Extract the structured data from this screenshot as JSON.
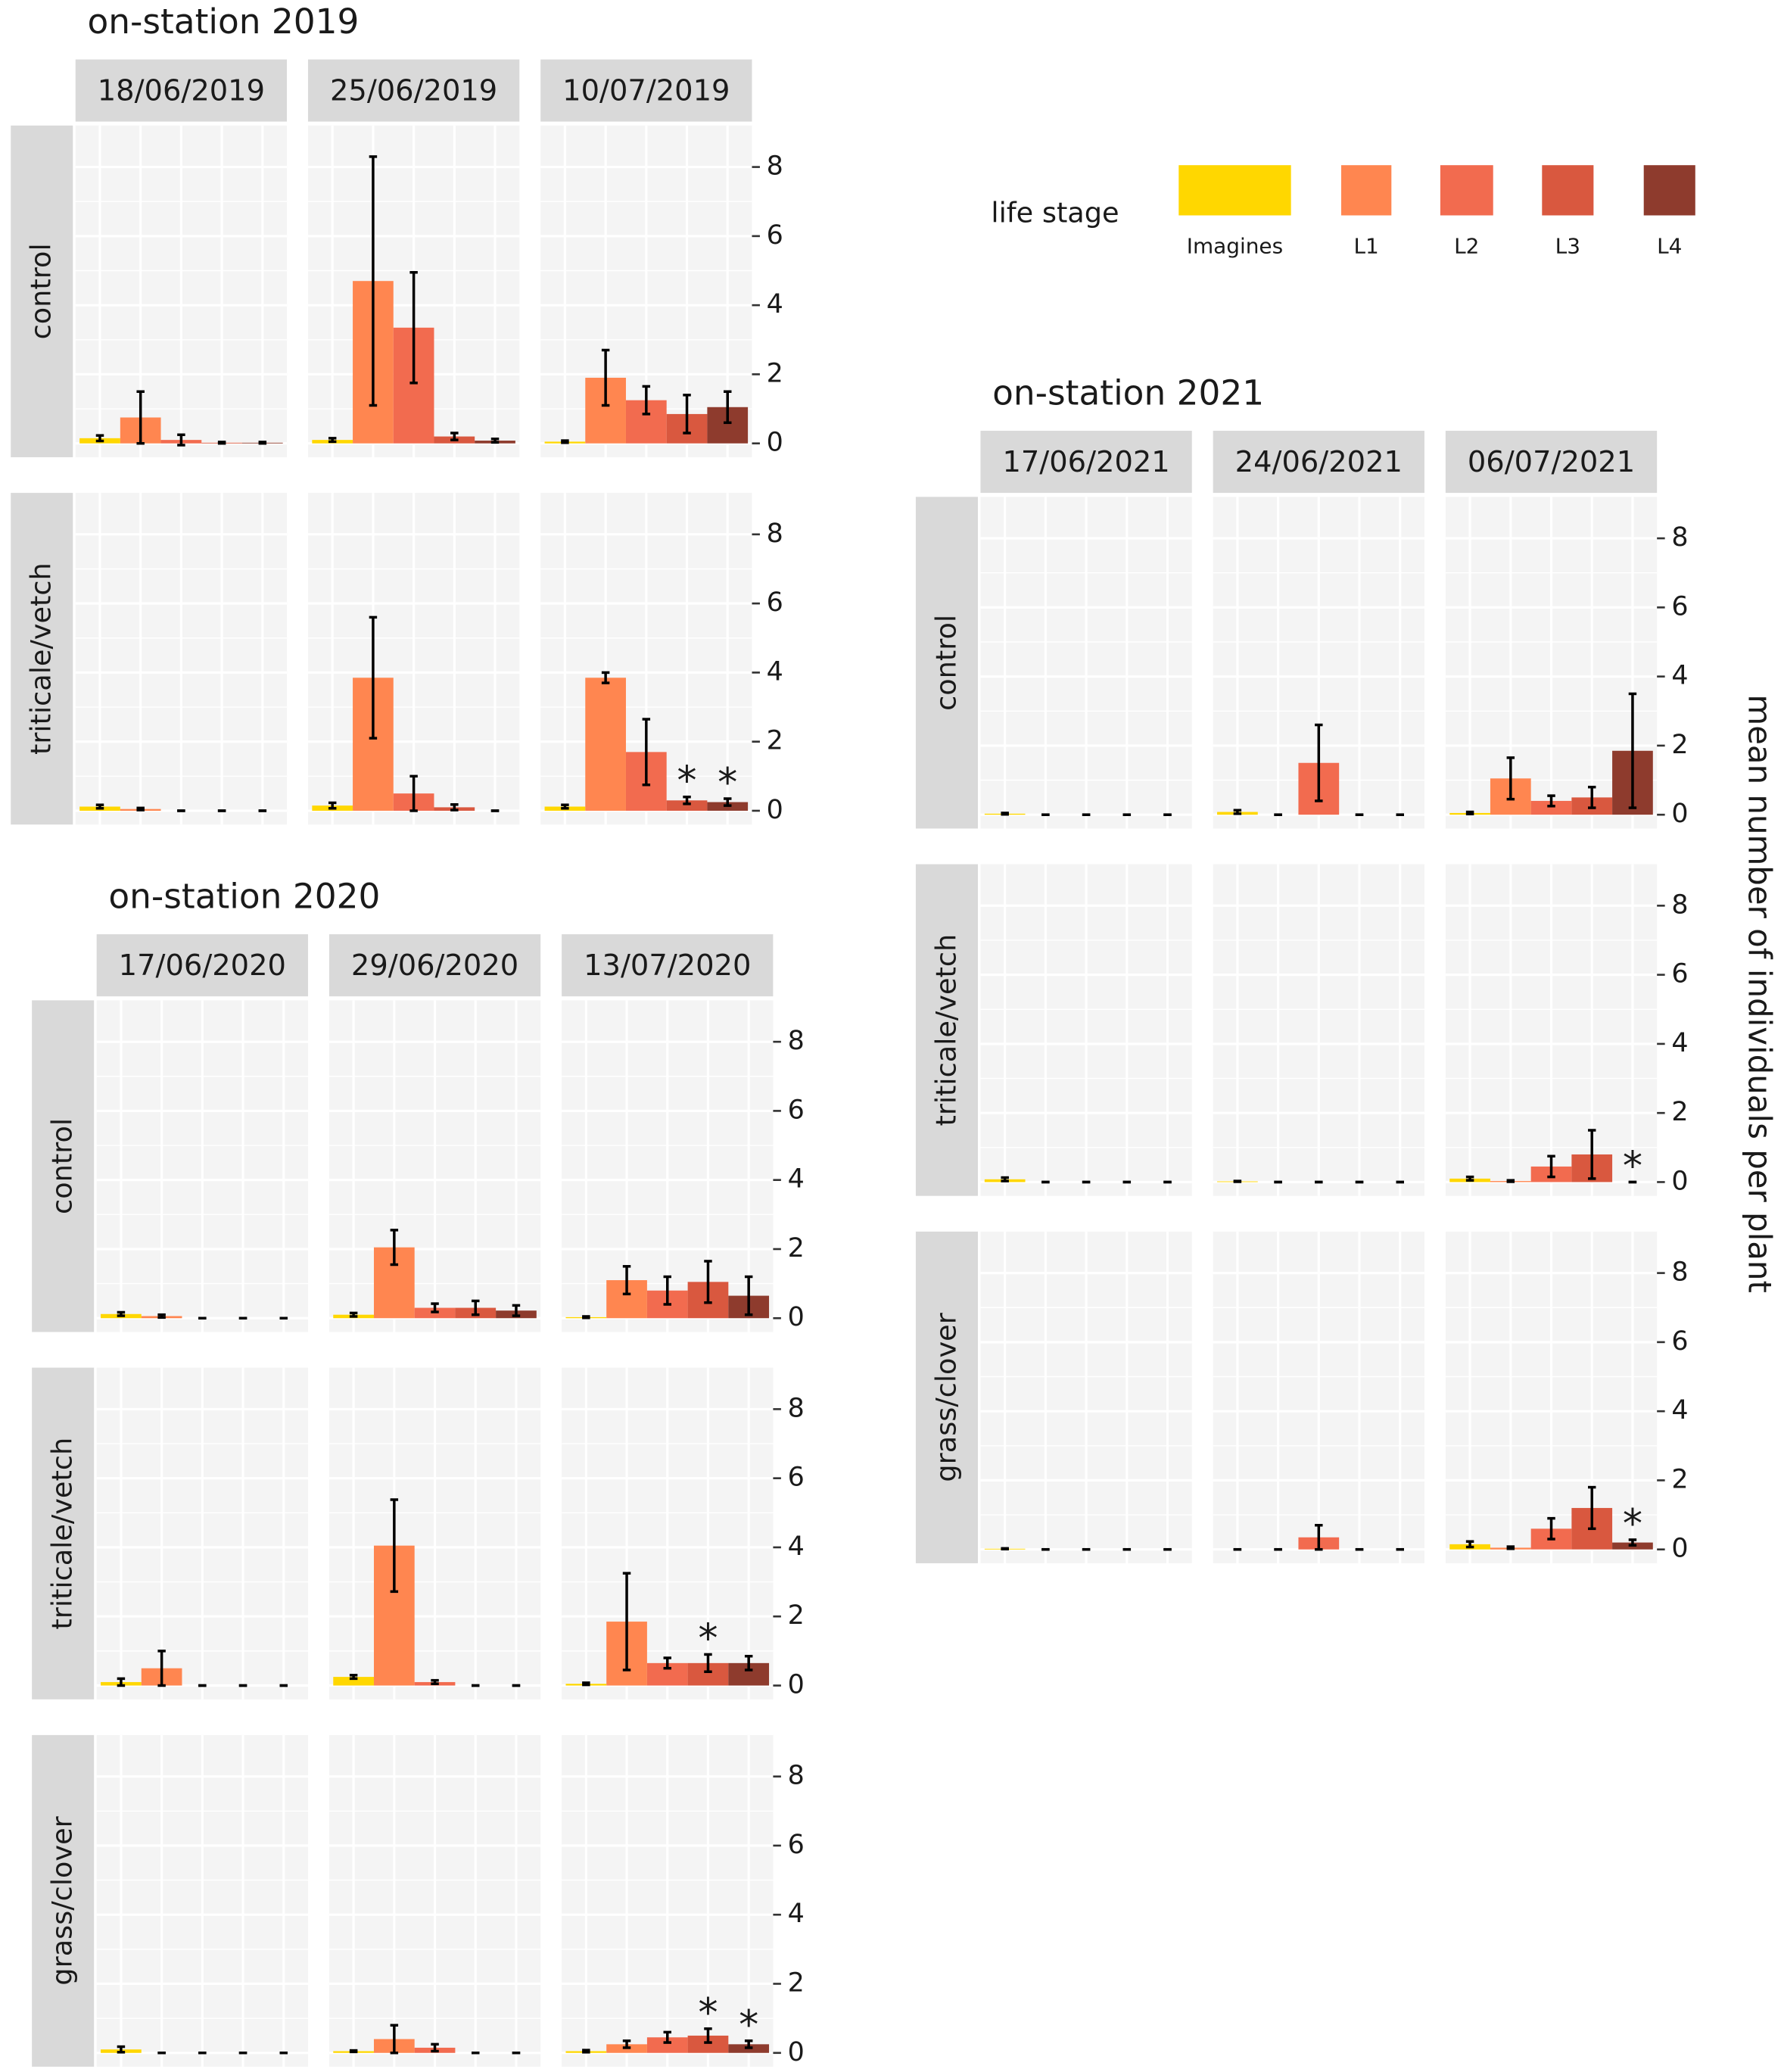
{
  "legend": {
    "title": "life stage",
    "categories": [
      "Imagines",
      "L1",
      "L2",
      "L3",
      "L4"
    ],
    "colors": [
      "#FFD700",
      "#FF8650",
      "#F26B4F",
      "#D9583F",
      "#8E3B2D"
    ]
  },
  "y_axis_label": "mean number of individuals per plant",
  "chart_data": [
    {
      "type": "bar",
      "title": "on-station 2019",
      "columns": [
        "18/06/2019",
        "25/06/2019",
        "10/07/2019"
      ],
      "rows": [
        "control",
        "triticale/vetch"
      ],
      "ylim": [
        -0.4,
        9.2
      ],
      "yticks": [
        0,
        2,
        4,
        6,
        8
      ],
      "panels": [
        [
          {
            "values": [
              0.15,
              0.75,
              0.1,
              0.02,
              0.02
            ],
            "errors": [
              0.08,
              0.75,
              0.15,
              0.02,
              0.02
            ]
          },
          {
            "values": [
              0.1,
              4.7,
              3.35,
              0.2,
              0.08
            ],
            "errors": [
              0.05,
              3.6,
              1.6,
              0.1,
              0.05
            ]
          },
          {
            "values": [
              0.05,
              1.9,
              1.25,
              0.85,
              1.05
            ],
            "errors": [
              0.03,
              0.8,
              0.4,
              0.55,
              0.45
            ]
          }
        ],
        [
          {
            "values": [
              0.12,
              0.05,
              0,
              0,
              0
            ],
            "errors": [
              0.05,
              0.03,
              0,
              0,
              0
            ]
          },
          {
            "values": [
              0.15,
              3.85,
              0.5,
              0.1,
              0
            ],
            "errors": [
              0.08,
              1.75,
              0.5,
              0.08,
              0
            ]
          },
          {
            "values": [
              0.12,
              3.85,
              1.7,
              0.3,
              0.25
            ],
            "errors": [
              0.05,
              0.15,
              0.95,
              0.1,
              0.1
            ],
            "labels": [
              null,
              null,
              null,
              "*",
              "*"
            ]
          }
        ]
      ]
    },
    {
      "type": "bar",
      "title": "on-station 2020",
      "columns": [
        "17/06/2020",
        "29/06/2020",
        "13/07/2020"
      ],
      "rows": [
        "control",
        "triticale/vetch",
        "grass/clover"
      ],
      "ylim": [
        -0.4,
        9.2
      ],
      "yticks": [
        0,
        2,
        4,
        6,
        8
      ],
      "panels": [
        [
          {
            "values": [
              0.12,
              0.06,
              0,
              0,
              0
            ],
            "errors": [
              0.05,
              0.04,
              0,
              0,
              0
            ]
          },
          {
            "values": [
              0.1,
              2.05,
              0.3,
              0.3,
              0.22
            ],
            "errors": [
              0.05,
              0.5,
              0.12,
              0.2,
              0.15
            ]
          },
          {
            "values": [
              0.03,
              1.1,
              0.8,
              1.05,
              0.65
            ],
            "errors": [
              0.02,
              0.4,
              0.4,
              0.6,
              0.55
            ]
          }
        ],
        [
          {
            "values": [
              0.1,
              0.5,
              0,
              0,
              0
            ],
            "errors": [
              0.1,
              0.5,
              0,
              0,
              0
            ]
          },
          {
            "values": [
              0.25,
              4.05,
              0.1,
              0,
              0
            ],
            "errors": [
              0.05,
              1.33,
              0.05,
              0,
              0
            ]
          },
          {
            "values": [
              0.05,
              1.85,
              0.65,
              0.65,
              0.65
            ],
            "errors": [
              0.03,
              1.4,
              0.15,
              0.25,
              0.2
            ],
            "labels": [
              null,
              null,
              null,
              "*",
              null
            ]
          }
        ],
        [
          {
            "values": [
              0.1,
              0,
              0,
              0,
              0
            ],
            "errors": [
              0.08,
              0,
              0,
              0,
              0
            ]
          },
          {
            "values": [
              0.05,
              0.4,
              0.15,
              0,
              0
            ],
            "errors": [
              0.02,
              0.4,
              0.1,
              0,
              0
            ]
          },
          {
            "values": [
              0.05,
              0.25,
              0.45,
              0.5,
              0.25
            ],
            "errors": [
              0.03,
              0.1,
              0.15,
              0.2,
              0.1
            ],
            "labels": [
              null,
              null,
              null,
              "*",
              "*"
            ]
          }
        ]
      ]
    },
    {
      "type": "bar",
      "title": "on-station 2021",
      "columns": [
        "17/06/2021",
        "24/06/2021",
        "06/07/2021"
      ],
      "rows": [
        "control",
        "triticale/vetch",
        "grass/clover"
      ],
      "ylim": [
        -0.4,
        9.2
      ],
      "yticks": [
        0,
        2,
        4,
        6,
        8
      ],
      "panels": [
        [
          {
            "values": [
              0.03,
              0,
              0,
              0,
              0
            ],
            "errors": [
              0.02,
              0,
              0,
              0,
              0
            ]
          },
          {
            "values": [
              0.08,
              0,
              1.5,
              0,
              0
            ],
            "errors": [
              0.05,
              0,
              1.1,
              0,
              0
            ]
          },
          {
            "values": [
              0.05,
              1.05,
              0.4,
              0.5,
              1.85
            ],
            "errors": [
              0.03,
              0.6,
              0.15,
              0.3,
              1.65
            ]
          }
        ],
        [
          {
            "values": [
              0.08,
              0,
              0,
              0,
              0
            ],
            "errors": [
              0.05,
              0,
              0,
              0,
              0
            ]
          },
          {
            "values": [
              0.02,
              0,
              0,
              0,
              0
            ],
            "errors": [
              0.01,
              0,
              0,
              0,
              0
            ]
          },
          {
            "values": [
              0.1,
              0.03,
              0.45,
              0.8,
              0
            ],
            "errors": [
              0.05,
              0.02,
              0.3,
              0.7,
              0
            ],
            "labels": [
              null,
              null,
              null,
              null,
              "*"
            ]
          }
        ],
        [
          {
            "values": [
              0.02,
              0,
              0,
              0,
              0
            ],
            "errors": [
              0.01,
              0,
              0,
              0,
              0
            ]
          },
          {
            "values": [
              0,
              0,
              0.35,
              0,
              0
            ],
            "errors": [
              0,
              0,
              0.35,
              0,
              0
            ]
          },
          {
            "values": [
              0.15,
              0.05,
              0.6,
              1.2,
              0.2
            ],
            "errors": [
              0.08,
              0.03,
              0.3,
              0.6,
              0.08
            ],
            "labels": [
              null,
              null,
              null,
              null,
              "*"
            ]
          }
        ]
      ]
    }
  ]
}
